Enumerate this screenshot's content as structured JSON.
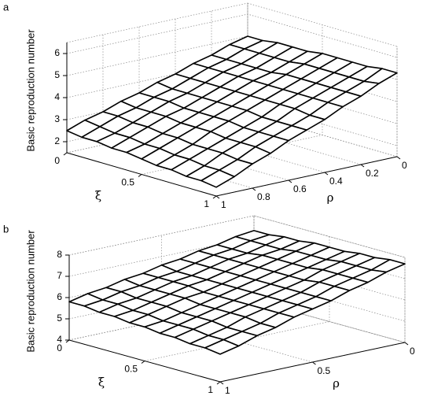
{
  "chart_data": [
    {
      "type": "surface",
      "label": "a",
      "zlabel": "Basic reproduction number",
      "xlabel": "ξ",
      "ylabel": "ρ",
      "x": [
        0,
        0.1,
        0.2,
        0.3,
        0.4,
        0.5,
        0.6,
        0.7,
        0.8,
        0.9,
        1
      ],
      "y": [
        0,
        0.1,
        0.2,
        0.3,
        0.4,
        0.5,
        0.6,
        0.7,
        0.8,
        0.9,
        1
      ],
      "z": [
        [
          5.0,
          4.8,
          4.5,
          4.3,
          4.0,
          3.8,
          3.5,
          3.3,
          3.0,
          2.8,
          2.5
        ],
        [
          5.0,
          4.8,
          4.5,
          4.3,
          4.0,
          3.7,
          3.5,
          3.2,
          3.0,
          2.7,
          2.4
        ],
        [
          5.1,
          4.8,
          4.5,
          4.3,
          4.0,
          3.7,
          3.5,
          3.2,
          2.9,
          2.6,
          2.4
        ],
        [
          5.1,
          4.8,
          4.5,
          4.3,
          4.0,
          3.7,
          3.4,
          3.2,
          2.9,
          2.6,
          2.3
        ],
        [
          5.1,
          4.8,
          4.5,
          4.3,
          4.0,
          3.7,
          3.4,
          3.1,
          2.8,
          2.5,
          2.3
        ],
        [
          5.2,
          4.9,
          4.6,
          4.3,
          4.0,
          3.7,
          3.4,
          3.1,
          2.8,
          2.5,
          2.2
        ],
        [
          5.2,
          4.9,
          4.6,
          4.3,
          4.0,
          3.7,
          3.4,
          3.1,
          2.7,
          2.4,
          2.1
        ],
        [
          5.2,
          4.9,
          4.6,
          4.3,
          4.0,
          3.6,
          3.3,
          3.0,
          2.7,
          2.4,
          2.1
        ],
        [
          5.2,
          4.9,
          4.6,
          4.3,
          4.0,
          3.6,
          3.3,
          3.0,
          2.7,
          2.3,
          2.0
        ],
        [
          5.3,
          4.9,
          4.6,
          4.3,
          3.9,
          3.6,
          3.3,
          3.0,
          2.6,
          2.3,
          2.0
        ],
        [
          5.3,
          5.0,
          4.6,
          4.3,
          3.9,
          3.6,
          3.3,
          2.9,
          2.6,
          2.2,
          1.9
        ]
      ],
      "xlim": [
        0,
        1
      ],
      "xticks": [
        0,
        0.5,
        1
      ],
      "ylim": [
        0,
        1
      ],
      "yticks": [
        0,
        0.2,
        0.4,
        0.6,
        0.8,
        1
      ],
      "zlim": [
        1.5,
        6.5
      ],
      "zticks": [
        2,
        3,
        4,
        5,
        6
      ],
      "grid": true
    },
    {
      "type": "surface",
      "label": "b",
      "zlabel": "Basic reproduction number",
      "xlabel": "ξ",
      "ylabel": "ρ",
      "x": [
        0,
        0.1,
        0.2,
        0.3,
        0.4,
        0.5,
        0.6,
        0.7,
        0.8,
        0.9,
        1
      ],
      "y": [
        0,
        0.1,
        0.2,
        0.3,
        0.4,
        0.5,
        0.6,
        0.7,
        0.8,
        0.9,
        1
      ],
      "z": [
        [
          7.3,
          7.2,
          7.0,
          6.9,
          6.7,
          6.6,
          6.4,
          6.3,
          6.1,
          6.0,
          5.8
        ],
        [
          7.3,
          7.2,
          7.0,
          6.9,
          6.7,
          6.5,
          6.4,
          6.2,
          6.1,
          5.9,
          5.8
        ],
        [
          7.4,
          7.2,
          7.0,
          6.9,
          6.7,
          6.5,
          6.4,
          6.2,
          6.0,
          5.9,
          5.7
        ],
        [
          7.4,
          7.2,
          7.1,
          6.9,
          6.7,
          6.5,
          6.4,
          6.2,
          6.0,
          5.8,
          5.7
        ],
        [
          7.5,
          7.3,
          7.1,
          6.9,
          6.7,
          6.5,
          6.3,
          6.2,
          6.0,
          5.8,
          5.6
        ],
        [
          7.5,
          7.3,
          7.1,
          6.9,
          6.7,
          6.5,
          6.3,
          6.1,
          5.9,
          5.7,
          5.6
        ],
        [
          7.5,
          7.3,
          7.1,
          6.9,
          6.7,
          6.5,
          6.3,
          6.1,
          5.9,
          5.7,
          5.5
        ],
        [
          7.6,
          7.4,
          7.2,
          6.9,
          6.7,
          6.5,
          6.3,
          6.1,
          5.9,
          5.7,
          5.5
        ],
        [
          7.6,
          7.4,
          7.2,
          7.0,
          6.7,
          6.5,
          6.3,
          6.1,
          5.8,
          5.6,
          5.4
        ],
        [
          7.7,
          7.4,
          7.2,
          7.0,
          6.7,
          6.5,
          6.3,
          6.0,
          5.8,
          5.6,
          5.4
        ],
        [
          7.7,
          7.5,
          7.2,
          7.0,
          6.7,
          6.5,
          6.3,
          6.0,
          5.8,
          5.5,
          5.3
        ]
      ],
      "xlim": [
        0,
        1
      ],
      "xticks": [
        0,
        0.5,
        1
      ],
      "ylim": [
        0,
        1
      ],
      "yticks": [
        0,
        0.5,
        1
      ],
      "zlim": [
        4,
        8
      ],
      "zticks": [
        4,
        5,
        6,
        7,
        8
      ],
      "grid": true
    }
  ]
}
